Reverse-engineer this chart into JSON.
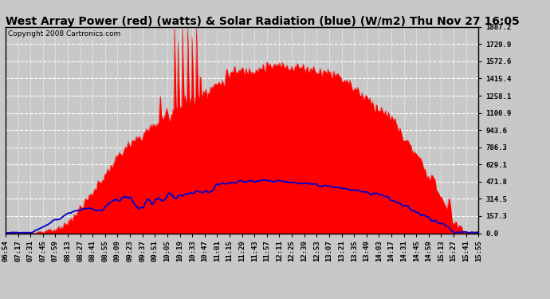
{
  "title": "West Array Power (red) (watts) & Solar Radiation (blue) (W/m2) Thu Nov 27 16:05",
  "copyright": "Copyright 2008 Cartronics.com",
  "background_color": "#c8c8c8",
  "plot_bg_color": "#c8c8c8",
  "ymin": 0.0,
  "ymax": 1887.2,
  "yticks": [
    0.0,
    157.3,
    314.5,
    471.8,
    629.1,
    786.3,
    943.6,
    1100.9,
    1258.1,
    1415.4,
    1572.6,
    1729.9,
    1887.2
  ],
  "x_labels": [
    "06:54",
    "07:17",
    "07:31",
    "07:45",
    "07:59",
    "08:13",
    "08:27",
    "08:41",
    "08:55",
    "09:09",
    "09:23",
    "09:37",
    "09:51",
    "10:05",
    "10:19",
    "10:33",
    "10:47",
    "11:01",
    "11:15",
    "11:29",
    "11:43",
    "11:57",
    "12:11",
    "12:25",
    "12:39",
    "12:53",
    "13:07",
    "13:21",
    "13:35",
    "13:49",
    "14:03",
    "14:17",
    "14:31",
    "14:45",
    "14:59",
    "15:13",
    "15:27",
    "15:41",
    "15:55"
  ],
  "title_fontsize": 10,
  "tick_fontsize": 6.5,
  "copyright_fontsize": 6.5,
  "grid_color": "#aaaaaa",
  "red_color": "#ff0000",
  "blue_color": "#0000cc"
}
